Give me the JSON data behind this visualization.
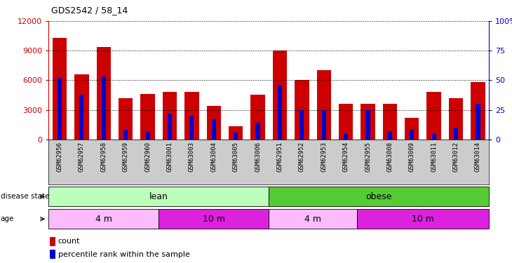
{
  "title": "GDS2542 / 58_14",
  "samples": [
    "GSM62956",
    "GSM62957",
    "GSM62958",
    "GSM62959",
    "GSM62960",
    "GSM63001",
    "GSM63003",
    "GSM63004",
    "GSM63005",
    "GSM63006",
    "GSM62951",
    "GSM62952",
    "GSM62953",
    "GSM62954",
    "GSM62955",
    "GSM63008",
    "GSM63009",
    "GSM63011",
    "GSM63012",
    "GSM63014"
  ],
  "counts": [
    10300,
    6600,
    9400,
    4200,
    4600,
    4800,
    4800,
    3400,
    1300,
    4500,
    9000,
    6050,
    7000,
    3600,
    3600,
    3600,
    2200,
    4800,
    4200,
    5800
  ],
  "percentile_ranks": [
    52,
    38,
    53,
    8,
    7,
    22,
    20,
    17,
    6,
    14,
    46,
    25,
    25,
    5,
    25,
    7,
    9,
    5,
    10,
    30
  ],
  "bar_color": "#cc0000",
  "marker_color": "#0000cc",
  "ylim_left": [
    0,
    12000
  ],
  "ylim_right": [
    0,
    100
  ],
  "yticks_left": [
    0,
    3000,
    6000,
    9000,
    12000
  ],
  "yticks_right": [
    0,
    25,
    50,
    75,
    100
  ],
  "disease_groups": [
    {
      "label": "lean",
      "start": 0,
      "end": 10,
      "color": "#bbffbb"
    },
    {
      "label": "obese",
      "start": 10,
      "end": 20,
      "color": "#55cc33"
    }
  ],
  "age_groups": [
    {
      "label": "4 m",
      "start": 0,
      "end": 5,
      "color": "#ffbbff"
    },
    {
      "label": "10 m",
      "start": 5,
      "end": 10,
      "color": "#dd22dd"
    },
    {
      "label": "4 m",
      "start": 10,
      "end": 14,
      "color": "#ffbbff"
    },
    {
      "label": "10 m",
      "start": 14,
      "end": 20,
      "color": "#dd22dd"
    }
  ],
  "bar_color_legend": "#cc0000",
  "marker_color_legend": "#0000cc",
  "legend_labels": [
    "count",
    "percentile rank within the sample"
  ],
  "xtick_bg": "#cccccc"
}
